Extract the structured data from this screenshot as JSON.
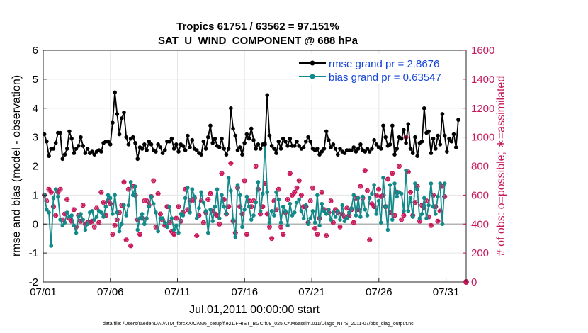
{
  "chart_data": {
    "type": "line",
    "title_line1": "Tropics 61751 / 63562 = 97.151%",
    "title_line2": "SAT_U_WIND_COMPONENT @ 688 hPa",
    "xlabel": "Jul.01,2011 00:00:00 start",
    "ylabel_left": "rmse and bias (model - observation)",
    "ylabel_right": "# of obs: o=possible; ∗=assimilated",
    "left_ylim": [
      -2,
      6
    ],
    "left_yticks": [
      "-2",
      "-1",
      "0",
      "1",
      "2",
      "3",
      "4",
      "5",
      "6"
    ],
    "right_ylim": [
      0,
      1600
    ],
    "right_yticks": [
      "0",
      "200",
      "400",
      "600",
      "800",
      "1000",
      "1200",
      "1400",
      "1600"
    ],
    "xlim": [
      0,
      31.5
    ],
    "xticks": [
      {
        "value": 0,
        "label": "07/01"
      },
      {
        "value": 5,
        "label": "07/06"
      },
      {
        "value": 10,
        "label": "07/11"
      },
      {
        "value": 15,
        "label": "07/16"
      },
      {
        "value": 20,
        "label": "07/21"
      },
      {
        "value": 25,
        "label": "07/26"
      },
      {
        "value": 30,
        "label": "07/31"
      }
    ],
    "legend": [
      {
        "label": "rmse grand pr = 2.8676",
        "color": "#000000"
      },
      {
        "label": "bias grand pr = 0.63547",
        "color": "#138a8a"
      }
    ],
    "rmse": [
      3.1,
      2.85,
      2.35,
      2.6,
      2.6,
      2.8,
      3.15,
      3.15,
      2.25,
      2.4,
      2.6,
      3.2,
      2.95,
      2.45,
      2.6,
      2.7,
      3.0,
      2.7,
      2.45,
      2.6,
      2.45,
      2.5,
      2.4,
      2.5,
      2.55,
      2.5,
      2.8,
      2.85,
      2.85,
      2.75,
      3.5,
      4.55,
      3.8,
      3.1,
      3.65,
      3.85,
      3.0,
      2.75,
      2.95,
      3.0,
      2.8,
      2.25,
      2.65,
      2.6,
      2.75,
      2.55,
      2.85,
      2.75,
      2.55,
      2.5,
      2.75,
      2.65,
      2.45,
      2.55,
      2.85,
      2.85,
      2.95,
      2.6,
      2.75,
      2.5,
      2.75,
      2.7,
      2.55,
      3.05,
      2.65,
      2.9,
      2.6,
      2.55,
      2.45,
      2.4,
      2.85,
      2.6,
      3.0,
      3.4,
      2.8,
      2.95,
      2.7,
      2.65,
      2.95,
      2.6,
      2.4,
      2.6,
      4.0,
      3.3,
      3.05,
      2.55,
      2.65,
      2.4,
      2.8,
      3.1,
      2.95,
      3.3,
      2.9,
      2.6,
      2.75,
      2.6,
      2.75,
      2.75,
      4.45,
      3.05,
      2.7,
      2.6,
      2.45,
      2.85,
      2.6,
      2.95,
      2.85,
      2.7,
      2.95,
      2.7,
      2.7,
      2.85,
      2.7,
      2.6,
      2.65,
      2.85,
      3.0,
      2.85,
      2.6,
      2.55,
      2.6,
      2.4,
      2.5,
      2.6,
      3.2,
      2.9,
      2.65,
      2.75,
      2.6,
      2.4,
      2.6,
      2.5,
      2.45,
      2.55,
      2.55,
      2.55,
      2.65,
      2.5,
      2.6,
      2.75,
      2.55,
      2.5,
      2.6,
      2.5,
      2.6,
      2.9,
      2.75,
      2.65,
      2.6,
      3.4,
      3.0,
      2.7,
      2.75,
      3.4,
      2.4,
      2.6,
      3.0,
      2.95,
      3.25,
      2.8,
      3.45,
      2.6,
      2.45,
      3.0,
      2.35,
      2.8,
      2.85,
      4.0,
      3.15,
      3.2,
      2.45,
      2.95,
      2.6,
      3.05,
      2.75,
      3.8,
      3.05,
      2.5,
      2.95,
      2.85,
      3.1,
      2.65,
      3.6
    ],
    "bias": [
      1.0,
      0.5,
      0.4,
      -0.75,
      0.9,
      1.2,
      0.95,
      0.15,
      -0.05,
      0.05,
      0.4,
      0.25,
      0.3,
      -0.05,
      -0.3,
      0.25,
      0.35,
      0.15,
      -0.2,
      0.0,
      0.4,
      0.45,
      0.15,
      0.25,
      0.45,
      0.4,
      0.25,
      0.6,
      1.0,
      0.9,
      0.35,
      1.0,
      0.4,
      -0.25,
      0.0,
      0.65,
      0.3,
      0.65,
      1.45,
      1.0,
      1.3,
      -0.2,
      0.2,
      0.35,
      0.0,
      0.2,
      0.6,
      0.95,
      0.7,
      0.4,
      -0.25,
      0.2,
      0.2,
      0.05,
      -0.1,
      0.6,
      0.2,
      -0.2,
      -0.05,
      -0.3,
      0.35,
      0.3,
      0.9,
      1.25,
      0.4,
      1.2,
      0.95,
      0.2,
      0.55,
      1.1,
      0.75,
      0.45,
      -0.3,
      0.5,
      0.1,
      0.6,
      1.2,
      0.2,
      1.0,
      0.6,
      0.35,
      1.6,
      1.15,
      0.15,
      -0.45,
      1.35,
      1.0,
      -0.1,
      0.5,
      0.95,
      0.6,
      0.15,
      0.3,
      0.75,
      1.45,
      0.45,
      1.05,
      2.8,
      1.1,
      0.05,
      0.45,
      0.3,
      1.1,
      0.85,
      0.05,
      0.6,
      0.45,
      -0.05,
      0.7,
      0.3,
      0.4,
      0.75,
      0.85,
      0.45,
      0.2,
      0.65,
      0.0,
      0.2,
      0.45,
      0.05,
      1.0,
      -0.05,
      0.7,
      0.45,
      0.35,
      0.5,
      0.15,
      0.4,
      0.25,
      0.45,
      0.15,
      0.65,
      0.1,
      0.2,
      0.4,
      0.55,
      1.0,
      0.3,
      0.9,
      0.25,
      0.95,
      0.5,
      0.3,
      0.9,
      1.05,
      1.35,
      0.35,
      0.8,
      0.05,
      1.6,
      0.6,
      -0.2,
      1.35,
      0.15,
      1.4,
      0.95,
      1.1,
      1.05,
      0.45,
      1.85,
      0.45,
      0.9,
      0.25,
      1.4,
      1.2,
      0.2,
      0.35,
      0.9,
      0.2,
      0.65,
      1.4,
      0.6,
      0.35,
      0.95,
      1.4,
      0.0,
      1.4
    ],
    "nobs": [
      600,
      560,
      640,
      620,
      520,
      460,
      620,
      640,
      430,
      470,
      570,
      440,
      420,
      500,
      380,
      460,
      420,
      530,
      400,
      410,
      410,
      420,
      380,
      510,
      410,
      620,
      550,
      460,
      560,
      540,
      330,
      390,
      430,
      480,
      530,
      690,
      290,
      640,
      250,
      660,
      600,
      430,
      330,
      440,
      560,
      560,
      530,
      590,
      700,
      380,
      610,
      470,
      430,
      390,
      520,
      410,
      350,
      330,
      440,
      520,
      420,
      480,
      640,
      500,
      560,
      560,
      580,
      320,
      460,
      560,
      410,
      480,
      570,
      610,
      490,
      470,
      460,
      400,
      750,
      570,
      470,
      520,
      820,
      420,
      340,
      650,
      520,
      470,
      700,
      330,
      560,
      520,
      560,
      800,
      640,
      470,
      520,
      680,
      470,
      380,
      300,
      560,
      500,
      640,
      380,
      330,
      480,
      570,
      750,
      600,
      620,
      650,
      700,
      600,
      520,
      520,
      410,
      560,
      650,
      370,
      330,
      440,
      620,
      500,
      320,
      480,
      560,
      410,
      500,
      480,
      380,
      470,
      450,
      510,
      460,
      500,
      410,
      580,
      500,
      660,
      580,
      770,
      630,
      290,
      540,
      520,
      600,
      640,
      590,
      600,
      520,
      710,
      480,
      750,
      460,
      620,
      800,
      430,
      460,
      1000,
      760,
      620,
      460,
      550,
      660,
      420,
      530,
      510,
      560,
      450,
      390,
      600,
      520,
      420,
      490,
      660,
      590
    ]
  }
}
